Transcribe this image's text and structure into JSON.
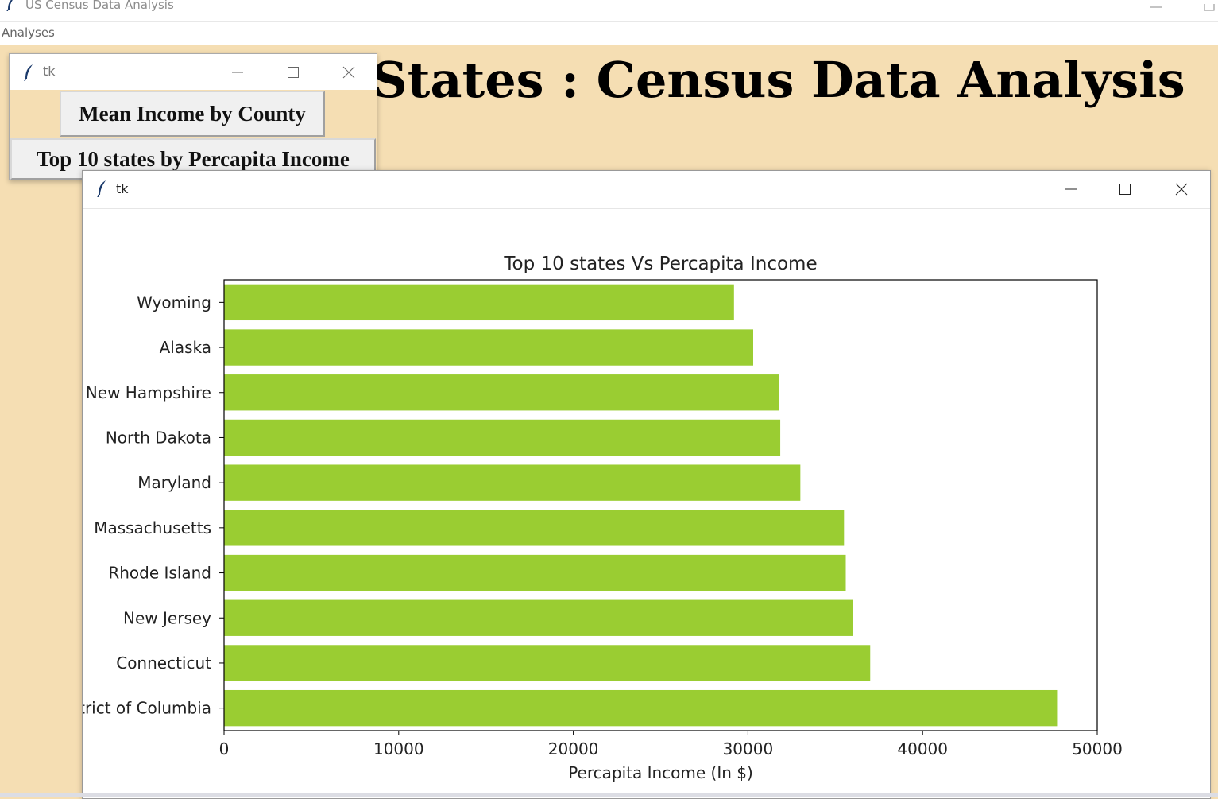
{
  "main_window": {
    "title": "US Census Data Analysis",
    "menu": [
      "Analyses"
    ],
    "heading": "States : Census Data Analysis"
  },
  "button_window": {
    "title": "tk",
    "buttons": [
      "Mean Income by County",
      "Top 10 states by Percapita Income"
    ]
  },
  "chart_window": {
    "title": "tk"
  },
  "colors": {
    "bar": "#9acd32",
    "background": "#f5deb3"
  },
  "icons": {
    "app": "feather-icon",
    "minimize": "minimize-icon",
    "maximize": "maximize-icon",
    "close": "close-icon"
  },
  "chart_data": {
    "type": "bar",
    "orientation": "horizontal",
    "title": "Top 10 states Vs Percapita Income",
    "xlabel": "Percapita Income (In $)",
    "ylabel": "",
    "categories": [
      "Wyoming",
      "Alaska",
      "New Hampshire",
      "North Dakota",
      "Maryland",
      "Massachusetts",
      "Rhode Island",
      "New Jersey",
      "Connecticut",
      "District of Columbia"
    ],
    "values": [
      29200,
      30300,
      31800,
      31850,
      33000,
      35500,
      35600,
      36000,
      37000,
      47700
    ],
    "xlim": [
      0,
      50000
    ],
    "xticks": [
      0,
      10000,
      20000,
      30000,
      40000,
      50000
    ],
    "grid": false,
    "color": "#9acd32"
  }
}
